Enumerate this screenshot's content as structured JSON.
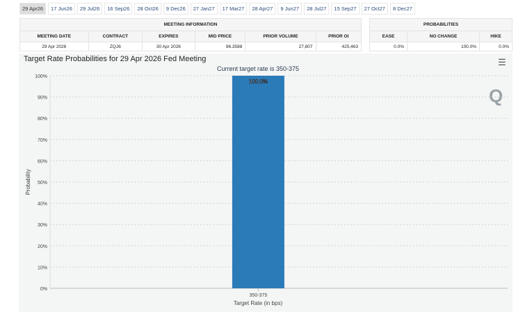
{
  "tabs": [
    "29 Apr26",
    "17 Jun26",
    "29 Jul26",
    "16 Sep26",
    "28 Oct26",
    "9 Dec26",
    "27 Jan27",
    "17 Mar27",
    "28 Apr27",
    "9 Jun27",
    "28 Jul27",
    "15 Sep27",
    "27 Oct27",
    "8 Dec27"
  ],
  "meeting_info": {
    "title": "MEETING INFORMATION",
    "headers": [
      "MEETING DATE",
      "CONTRACT",
      "EXPIRES",
      "MID PRICE",
      "PRIOR VOLUME",
      "PRIOR OI"
    ],
    "row": [
      "29 Apr 2026",
      "ZQJ6",
      "30 Apr 2026",
      "96.3588",
      "27,807",
      "425,463"
    ]
  },
  "probabilities": {
    "title": "PROBABILITIES",
    "headers": [
      "EASE",
      "NO CHANGE",
      "HIKE"
    ],
    "row": [
      "0.0%",
      "100.0%",
      "0.0%"
    ]
  },
  "chart_title": "Target Rate Probabilities for 29 Apr 2026 Fed Meeting",
  "menu_icon": "hamburger-menu-icon",
  "chart_data": {
    "type": "bar",
    "subtitle": "Current target rate is 350-375",
    "categories": [
      "350-375"
    ],
    "values": [
      100.0
    ],
    "data_labels": [
      "100.0%"
    ],
    "xlabel": "Target Rate (in bps)",
    "ylabel": "Probability",
    "ylim": [
      0,
      100
    ],
    "yticks": [
      "0%",
      "10%",
      "20%",
      "30%",
      "40%",
      "50%",
      "60%",
      "70%",
      "80%",
      "90%",
      "100%"
    ],
    "grid": true,
    "bar_color": "#2b7bb9"
  }
}
